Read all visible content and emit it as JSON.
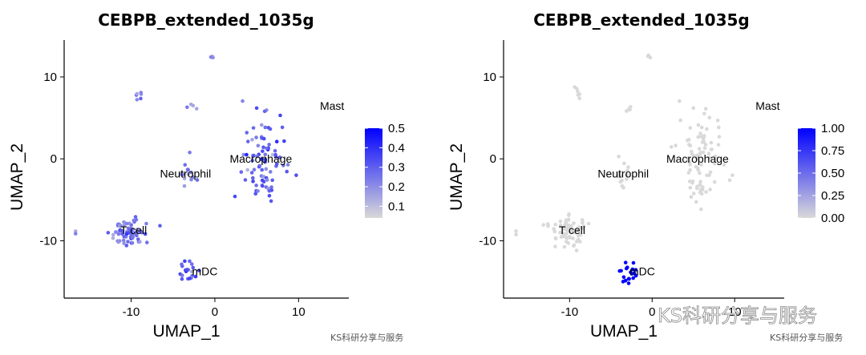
{
  "chart_data": [
    {
      "type": "scatter",
      "title": "CEBPB_extended_1035g",
      "xlabel": "UMAP_1",
      "ylabel": "UMAP_2",
      "xlim": [
        -18,
        16
      ],
      "ylim": [
        -17,
        14.5
      ],
      "xticks": [
        -10,
        0,
        10
      ],
      "yticks": [
        10,
        0,
        -10
      ],
      "xtick_labels": [
        "-10",
        "0",
        "10"
      ],
      "ytick_labels": [
        "10",
        "0",
        "-10"
      ],
      "color_scale": {
        "low": "#d9d9d9",
        "high": "#0000ff",
        "min": 0.04,
        "max": 0.5,
        "ticks": [
          0.5,
          0.4,
          0.3,
          0.2,
          0.1
        ],
        "tick_labels": [
          "0.5",
          "0.4",
          "0.3",
          "0.2",
          "0.1"
        ]
      },
      "cluster_labels": [
        {
          "text": "Mast",
          "x": 14,
          "y": 6.5
        },
        {
          "text": "Macrophage",
          "x": 5.5,
          "y": 0
        },
        {
          "text": "Neutrophil",
          "x": -3.5,
          "y": -1.8
        },
        {
          "text": "T cell",
          "x": -9.7,
          "y": -8.7
        },
        {
          "text": "mDC",
          "x": -1.2,
          "y": -13.7
        }
      ],
      "points_note": "approximate cluster point clouds",
      "clusters": [
        {
          "name": "top",
          "cx": -0.5,
          "cy": 12.5,
          "sx": 0.3,
          "sy": 0.2,
          "n": 3,
          "value": 0.18
        },
        {
          "name": "upper-left",
          "cx": -9,
          "cy": 8,
          "sx": 0.3,
          "sy": 0.5,
          "n": 6,
          "value": 0.2
        },
        {
          "name": "mid-small",
          "cx": -2.8,
          "cy": 6.3,
          "sx": 0.3,
          "sy": 0.3,
          "n": 4,
          "value": 0.22
        },
        {
          "name": "far-left",
          "cx": -16.5,
          "cy": -8.9,
          "sx": 0.2,
          "sy": 0.2,
          "n": 2,
          "value": 0.2
        },
        {
          "name": "Neutrophil",
          "cx": -3.3,
          "cy": -1.6,
          "sx": 0.6,
          "sy": 0.9,
          "n": 14,
          "value": 0.22
        },
        {
          "name": "Macrophage",
          "cx": 5.8,
          "cy": 0.3,
          "sx": 1.4,
          "sy": 2.2,
          "n": 70,
          "value": 0.28
        },
        {
          "name": "Macrophage-low",
          "cx": 5.8,
          "cy": -3.6,
          "sx": 0.7,
          "sy": 0.8,
          "n": 16,
          "value": 0.26
        },
        {
          "name": "T cell",
          "cx": -10.2,
          "cy": -9,
          "sx": 1.1,
          "sy": 0.9,
          "n": 70,
          "value": 0.25
        },
        {
          "name": "mDC",
          "cx": -3,
          "cy": -13.8,
          "sx": 0.7,
          "sy": 0.6,
          "n": 20,
          "value": 0.3
        }
      ]
    },
    {
      "type": "scatter",
      "title": "CEBPB_extended_1035g",
      "xlabel": "UMAP_1",
      "ylabel": "UMAP_2",
      "xlim": [
        -18,
        16
      ],
      "ylim": [
        -17,
        14.5
      ],
      "xticks": [
        -10,
        0,
        10
      ],
      "yticks": [
        10,
        0,
        -10
      ],
      "xtick_labels": [
        "-10",
        "0",
        "10"
      ],
      "ytick_labels": [
        "10",
        "0",
        "-10"
      ],
      "color_scale": {
        "low": "#d9d9d9",
        "high": "#0000ff",
        "min": 0.0,
        "max": 1.0,
        "ticks": [
          1.0,
          0.75,
          0.5,
          0.25,
          0.0
        ],
        "tick_labels": [
          "1.00",
          "0.75",
          "0.50",
          "0.25",
          "0.00"
        ]
      },
      "cluster_labels": [
        {
          "text": "Mast",
          "x": 14,
          "y": 6.5
        },
        {
          "text": "Macrophage",
          "x": 5.5,
          "y": 0
        },
        {
          "text": "Neutrophil",
          "x": -3.5,
          "y": -1.8
        },
        {
          "text": "T cell",
          "x": -9.7,
          "y": -8.7
        },
        {
          "text": "mDC",
          "x": -1.2,
          "y": -13.7
        }
      ],
      "points_note": "approximate cluster point clouds",
      "clusters": [
        {
          "name": "top",
          "cx": -0.5,
          "cy": 12.5,
          "sx": 0.3,
          "sy": 0.2,
          "n": 3,
          "value": 0.0
        },
        {
          "name": "upper-left",
          "cx": -9,
          "cy": 8,
          "sx": 0.3,
          "sy": 0.5,
          "n": 6,
          "value": 0.0
        },
        {
          "name": "mid-small",
          "cx": -2.8,
          "cy": 6.3,
          "sx": 0.3,
          "sy": 0.3,
          "n": 4,
          "value": 0.0
        },
        {
          "name": "far-left",
          "cx": -16.5,
          "cy": -8.9,
          "sx": 0.2,
          "sy": 0.2,
          "n": 2,
          "value": 0.0
        },
        {
          "name": "Neutrophil",
          "cx": -3.3,
          "cy": -1.6,
          "sx": 0.6,
          "sy": 0.9,
          "n": 14,
          "value": 0.0
        },
        {
          "name": "Macrophage",
          "cx": 5.8,
          "cy": 0.3,
          "sx": 1.4,
          "sy": 2.2,
          "n": 70,
          "value": 0.0
        },
        {
          "name": "Macrophage-low",
          "cx": 5.8,
          "cy": -3.6,
          "sx": 0.7,
          "sy": 0.8,
          "n": 16,
          "value": 0.0
        },
        {
          "name": "T cell",
          "cx": -10.2,
          "cy": -9,
          "sx": 1.1,
          "sy": 0.9,
          "n": 70,
          "value": 0.0
        },
        {
          "name": "mDC",
          "cx": -3,
          "cy": -13.8,
          "sx": 0.7,
          "sy": 0.6,
          "n": 20,
          "value": 1.0
        }
      ]
    }
  ],
  "watermark": {
    "small": "KS科研分享与服务",
    "big": "KS科研分享与服务"
  }
}
